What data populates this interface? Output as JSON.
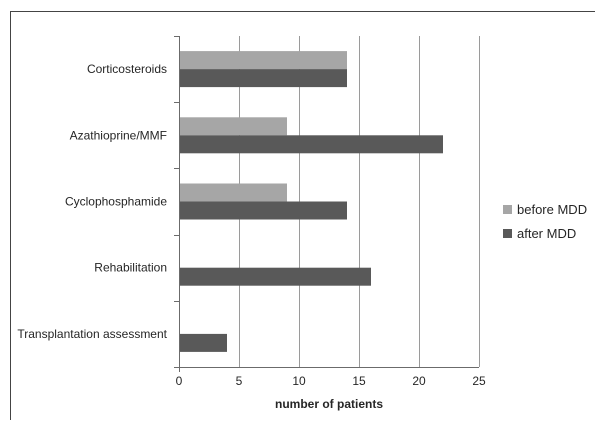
{
  "chart_data": {
    "type": "bar",
    "orientation": "horizontal",
    "categories": [
      "Corticosteroids",
      "Azathioprine/MMF",
      "Cyclophosphamide",
      "Rehabilitation",
      "Transplantation assessment"
    ],
    "series": [
      {
        "name": "before MDD",
        "color": "#a6a6a6",
        "values": [
          14,
          9,
          9,
          0,
          0
        ]
      },
      {
        "name": "after MDD",
        "color": "#595959",
        "values": [
          14,
          22,
          14,
          16,
          4
        ]
      }
    ],
    "xlabel": "number of patients",
    "ylabel": "",
    "xlim": [
      0,
      25
    ],
    "xticks": [
      "0",
      "5",
      "10",
      "15",
      "20",
      "25"
    ],
    "grid": true,
    "legend_position": "right"
  }
}
